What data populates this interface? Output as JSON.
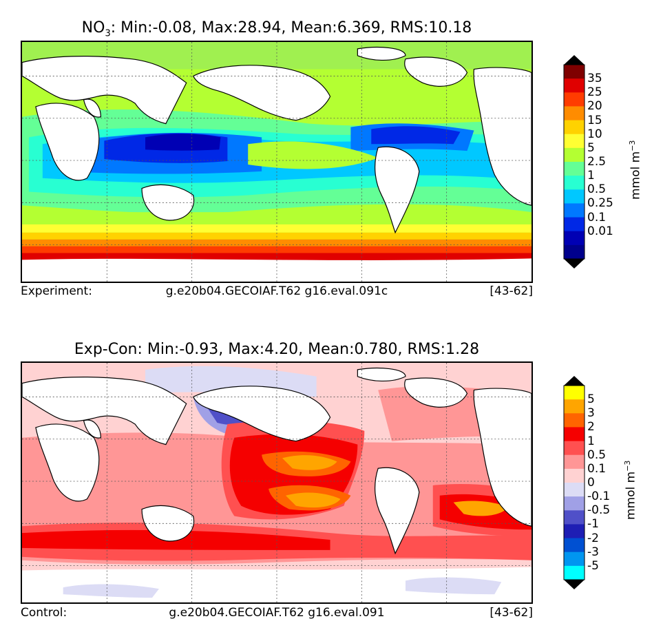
{
  "panels": [
    {
      "title_prefix": "NO",
      "title_sub": "3",
      "title_rest": ": Min:-0.08, Max:28.94, Mean:6.369, RMS:10.18",
      "footer_label": "Experiment:",
      "footer_case": "g.e20b04.GECOIAF.T62 g16.eval.091c",
      "footer_years": "[43-62]",
      "colorbar": {
        "unit_base": "mmol m",
        "unit_exp": "−3",
        "ticks": [
          "35",
          "25",
          "20",
          "15",
          "10",
          "5",
          "2.5",
          "1",
          "0.5",
          "0.25",
          "0.1",
          "0.01"
        ],
        "colors": [
          "#7f0000",
          "#e00000",
          "#ff3c00",
          "#ff8c00",
          "#ffd200",
          "#ffff33",
          "#b4ff32",
          "#64ff96",
          "#28ffd2",
          "#00c8ff",
          "#0078ff",
          "#0028e6",
          "#0000b4",
          "#00008c"
        ],
        "end_colors": [
          "#000000",
          "#000000"
        ]
      }
    },
    {
      "title_prefix": "",
      "title_sub": "",
      "title_rest": "Exp-Con: Min:-0.93, Max:4.20, Mean:0.780, RMS:1.28",
      "footer_label": "Control:",
      "footer_case": "g.e20b04.GECOIAF.T62 g16.eval.091",
      "footer_years": "[43-62]",
      "colorbar": {
        "unit_base": "mmol m",
        "unit_exp": "−3",
        "ticks": [
          "5",
          "3",
          "2",
          "1",
          "0.5",
          "0.1",
          "0",
          "-0.1",
          "-0.5",
          "-1",
          "-2",
          "-3",
          "-5"
        ],
        "colors": [
          "#ffff00",
          "#ffa500",
          "#ff6400",
          "#f50000",
          "#ff5050",
          "#ff9696",
          "#ffd2d2",
          "#dcdcf5",
          "#a0a0e6",
          "#5050c8",
          "#1e1eb4",
          "#0050d2",
          "#0096f0",
          "#00ffff"
        ],
        "end_colors": [
          "#000000",
          "#000000"
        ]
      }
    }
  ],
  "chart_data": [
    {
      "type": "heatmap",
      "title": "NO3: Min:-0.08, Max:28.94, Mean:6.369, RMS:10.18",
      "variable": "NO3",
      "stats": {
        "min": -0.08,
        "max": 28.94,
        "mean": 6.369,
        "rms": 10.18
      },
      "levels": [
        0.01,
        0.1,
        0.25,
        0.5,
        1,
        2.5,
        5,
        10,
        15,
        20,
        25,
        35
      ],
      "unit": "mmol m-3",
      "experiment": "g.e20b04.GECOIAF.T62 g16.eval.091c",
      "years": "[43-62]",
      "grid": true
    },
    {
      "type": "heatmap",
      "title": "Exp-Con: Min:-0.93, Max:4.20, Mean:0.780, RMS:1.28",
      "stats": {
        "min": -0.93,
        "max": 4.2,
        "mean": 0.78,
        "rms": 1.28
      },
      "levels": [
        -5,
        -3,
        -2,
        -1,
        -0.5,
        -0.1,
        0,
        0.1,
        0.5,
        1,
        2,
        3,
        5
      ],
      "unit": "mmol m-3",
      "control": "g.e20b04.GECOIAF.T62 g16.eval.091",
      "years": "[43-62]",
      "grid": true
    }
  ]
}
